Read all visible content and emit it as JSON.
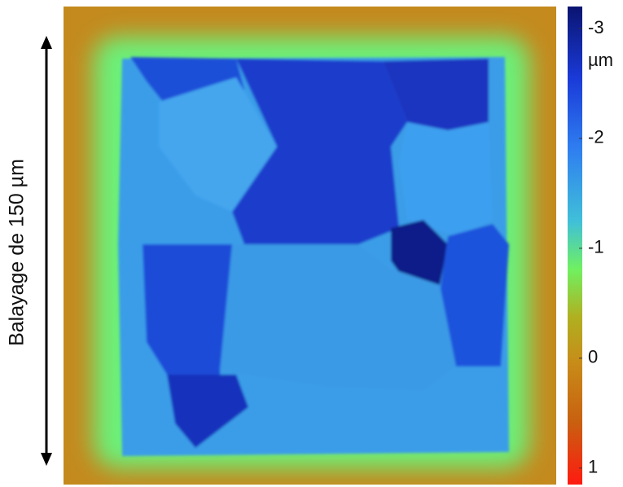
{
  "scan_label": "Balayage de 150 µm",
  "colorbar": {
    "unit": "µm",
    "range": [
      -3.2,
      1.15
    ],
    "ticks": [
      -3,
      -2,
      -1,
      0,
      1
    ]
  }
}
